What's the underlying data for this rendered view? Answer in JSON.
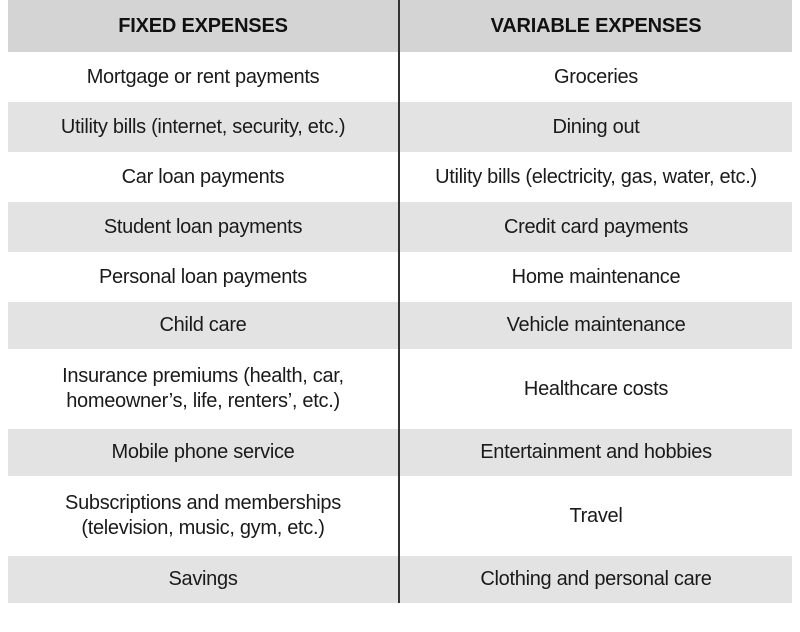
{
  "table": {
    "headers": {
      "fixed": "FIXED EXPENSES",
      "variable": "VARIABLE EXPENSES"
    },
    "rows": [
      {
        "fixed": [
          "Mortgage or rent payments"
        ],
        "variable": "Groceries"
      },
      {
        "fixed": [
          "Utility bills (internet, security, etc.)"
        ],
        "variable": "Dining out"
      },
      {
        "fixed": [
          "Car loan payments"
        ],
        "variable": "Utility bills (electricity, gas, water, etc.)"
      },
      {
        "fixed": [
          "Student loan payments"
        ],
        "variable": "Credit card payments"
      },
      {
        "fixed": [
          "Personal loan payments"
        ],
        "variable": "Home maintenance"
      },
      {
        "fixed": [
          "Child care"
        ],
        "variable": "Vehicle maintenance"
      },
      {
        "fixed": [
          "Insurance premiums (health, car,",
          "homeowner’s, life, renters’, etc.)"
        ],
        "variable": "Healthcare costs"
      },
      {
        "fixed": [
          "Mobile phone service"
        ],
        "variable": "Entertainment and hobbies"
      },
      {
        "fixed": [
          "Subscriptions and memberships",
          "(television, music, gym, etc.)"
        ],
        "variable": "Travel"
      },
      {
        "fixed": [
          "Savings"
        ],
        "variable": "Clothing and personal care"
      }
    ]
  },
  "colors": {
    "header_bg": "#d4d4d4",
    "shaded_row_bg": "#e3e3e3",
    "plain_row_bg": "#ffffff",
    "divider": "#333333"
  }
}
